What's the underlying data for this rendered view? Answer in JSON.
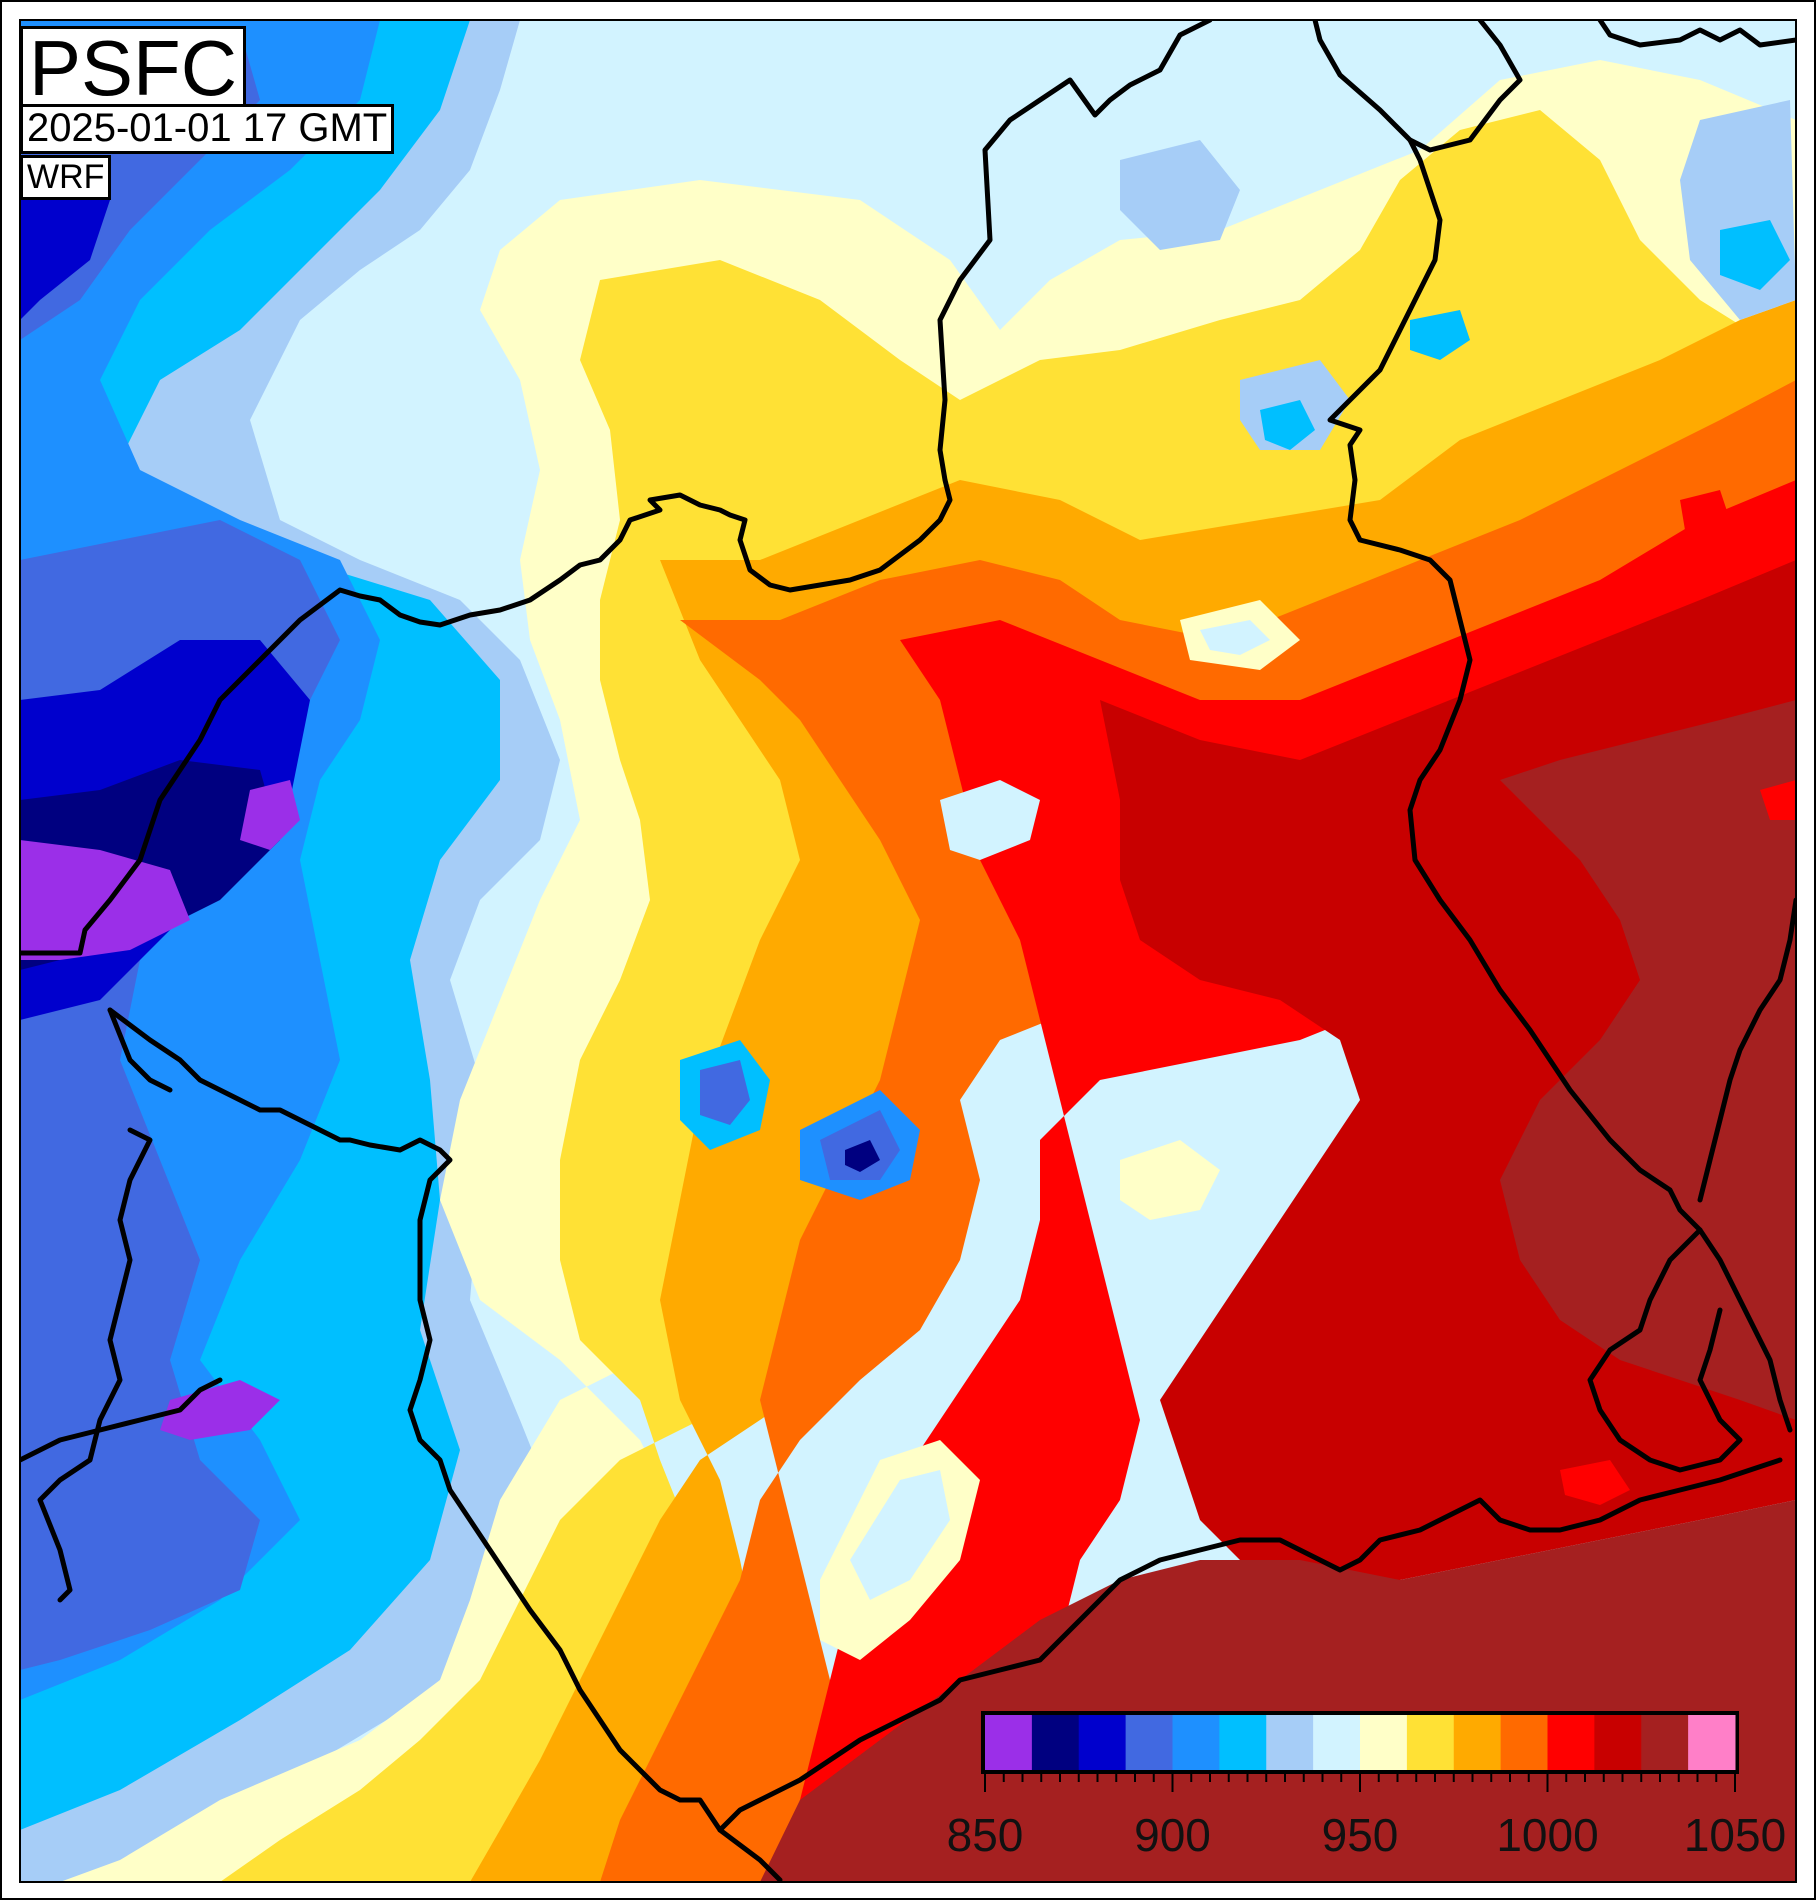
{
  "title": "PSFC",
  "datetime": "2025-01-01 17 GMT",
  "model": "WRF",
  "colorbar": {
    "min": 850,
    "max": 1050,
    "step": 10,
    "tick_labels": [
      "850",
      "900",
      "950",
      "1000",
      "1050"
    ],
    "colors": [
      "#9b2fe8",
      "#000080",
      "#0000cd",
      "#4169e1",
      "#1e90ff",
      "#00bfff",
      "#a6cdf7",
      "#d2f3ff",
      "#ffffc8",
      "#ffe135",
      "#ffaa00",
      "#ff6a00",
      "#ff0000",
      "#c80000",
      "#a52020",
      "#ff7fc8"
    ]
  },
  "field_colors": {
    "purple": "#9b2fe8",
    "navy": "#000080",
    "blue": "#0000cd",
    "royal": "#4169e1",
    "dodger": "#1e90ff",
    "sky": "#00bfff",
    "light_blue": "#a6cdf7",
    "pale_blue": "#d2f3ff",
    "cream": "#ffffc8",
    "yellow": "#ffe135",
    "orange": "#ffaa00",
    "dark_orange": "#ff6a00",
    "red": "#ff0000",
    "dark_red": "#c80000",
    "brown_red": "#a52020"
  }
}
